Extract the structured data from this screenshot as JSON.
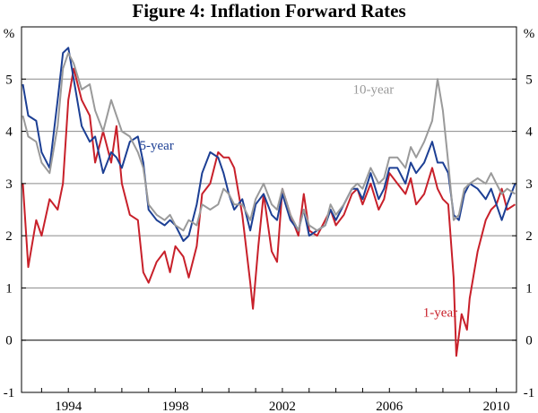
{
  "chart_data": {
    "type": "line",
    "title": "Figure 4: Inflation Forward Rates",
    "ylabel_left": "%",
    "ylabel_right": "%",
    "ylim": [
      -1,
      6
    ],
    "xlim": [
      1992.25,
      2010.75
    ],
    "y_ticks": [
      -1,
      0,
      1,
      2,
      3,
      4,
      5
    ],
    "x_ticks": [
      1994,
      1998,
      2002,
      2006,
      2010
    ],
    "grid": true,
    "series": [
      {
        "name": "1-year",
        "color": "#c8202a",
        "label_at": [
          2007.9,
          0.45
        ],
        "points": [
          [
            1992.3,
            3.0
          ],
          [
            1992.5,
            1.4
          ],
          [
            1992.8,
            2.3
          ],
          [
            1993.0,
            2.0
          ],
          [
            1993.3,
            2.7
          ],
          [
            1993.6,
            2.5
          ],
          [
            1993.8,
            3.0
          ],
          [
            1994.0,
            4.6
          ],
          [
            1994.2,
            5.2
          ],
          [
            1994.5,
            4.6
          ],
          [
            1994.8,
            4.3
          ],
          [
            1995.0,
            3.4
          ],
          [
            1995.3,
            4.0
          ],
          [
            1995.6,
            3.4
          ],
          [
            1995.8,
            4.1
          ],
          [
            1996.0,
            3.0
          ],
          [
            1996.3,
            2.4
          ],
          [
            1996.6,
            2.3
          ],
          [
            1996.8,
            1.3
          ],
          [
            1997.0,
            1.1
          ],
          [
            1997.3,
            1.5
          ],
          [
            1997.6,
            1.7
          ],
          [
            1997.8,
            1.3
          ],
          [
            1998.0,
            1.8
          ],
          [
            1998.3,
            1.6
          ],
          [
            1998.5,
            1.2
          ],
          [
            1998.8,
            1.8
          ],
          [
            1999.0,
            2.8
          ],
          [
            1999.3,
            3.0
          ],
          [
            1999.6,
            3.6
          ],
          [
            1999.8,
            3.5
          ],
          [
            2000.0,
            3.5
          ],
          [
            2000.2,
            3.3
          ],
          [
            2000.5,
            2.4
          ],
          [
            2000.8,
            1.1
          ],
          [
            2000.9,
            0.6
          ],
          [
            2001.1,
            1.8
          ],
          [
            2001.3,
            2.8
          ],
          [
            2001.6,
            1.7
          ],
          [
            2001.8,
            1.5
          ],
          [
            2002.0,
            2.9
          ],
          [
            2002.3,
            2.4
          ],
          [
            2002.6,
            2.0
          ],
          [
            2002.8,
            2.8
          ],
          [
            2003.0,
            2.1
          ],
          [
            2003.3,
            2.0
          ],
          [
            2003.6,
            2.3
          ],
          [
            2003.8,
            2.5
          ],
          [
            2004.0,
            2.2
          ],
          [
            2004.3,
            2.4
          ],
          [
            2004.6,
            2.8
          ],
          [
            2004.8,
            2.9
          ],
          [
            2005.0,
            2.6
          ],
          [
            2005.3,
            3.0
          ],
          [
            2005.6,
            2.5
          ],
          [
            2005.8,
            2.7
          ],
          [
            2006.0,
            3.2
          ],
          [
            2006.3,
            3.0
          ],
          [
            2006.6,
            2.8
          ],
          [
            2006.8,
            3.1
          ],
          [
            2007.0,
            2.6
          ],
          [
            2007.3,
            2.8
          ],
          [
            2007.6,
            3.3
          ],
          [
            2007.8,
            2.9
          ],
          [
            2008.0,
            2.7
          ],
          [
            2008.2,
            2.6
          ],
          [
            2008.4,
            1.2
          ],
          [
            2008.5,
            -0.3
          ],
          [
            2008.7,
            0.5
          ],
          [
            2008.9,
            0.2
          ],
          [
            2009.0,
            0.8
          ],
          [
            2009.3,
            1.7
          ],
          [
            2009.6,
            2.3
          ],
          [
            2009.8,
            2.5
          ],
          [
            2010.0,
            2.6
          ],
          [
            2010.2,
            2.9
          ],
          [
            2010.4,
            2.5
          ],
          [
            2010.7,
            2.6
          ]
        ]
      },
      {
        "name": "5-year",
        "color": "#1c3f94",
        "label_at": [
          1997.3,
          3.65
        ],
        "points": [
          [
            1992.3,
            4.9
          ],
          [
            1992.5,
            4.3
          ],
          [
            1992.8,
            4.2
          ],
          [
            1993.0,
            3.6
          ],
          [
            1993.3,
            3.3
          ],
          [
            1993.6,
            4.6
          ],
          [
            1993.8,
            5.5
          ],
          [
            1994.0,
            5.6
          ],
          [
            1994.2,
            5.0
          ],
          [
            1994.5,
            4.1
          ],
          [
            1994.8,
            3.8
          ],
          [
            1995.0,
            3.9
          ],
          [
            1995.3,
            3.2
          ],
          [
            1995.6,
            3.6
          ],
          [
            1995.8,
            3.5
          ],
          [
            1996.0,
            3.3
          ],
          [
            1996.3,
            3.8
          ],
          [
            1996.6,
            3.9
          ],
          [
            1996.8,
            3.4
          ],
          [
            1997.0,
            2.5
          ],
          [
            1997.3,
            2.3
          ],
          [
            1997.6,
            2.2
          ],
          [
            1997.8,
            2.3
          ],
          [
            1998.0,
            2.2
          ],
          [
            1998.3,
            1.9
          ],
          [
            1998.5,
            2.0
          ],
          [
            1998.8,
            2.6
          ],
          [
            1999.0,
            3.2
          ],
          [
            1999.3,
            3.6
          ],
          [
            1999.6,
            3.5
          ],
          [
            1999.8,
            3.2
          ],
          [
            2000.0,
            2.8
          ],
          [
            2000.2,
            2.5
          ],
          [
            2000.5,
            2.7
          ],
          [
            2000.8,
            2.1
          ],
          [
            2001.0,
            2.6
          ],
          [
            2001.3,
            2.8
          ],
          [
            2001.6,
            2.4
          ],
          [
            2001.8,
            2.3
          ],
          [
            2002.0,
            2.8
          ],
          [
            2002.3,
            2.3
          ],
          [
            2002.6,
            2.1
          ],
          [
            2002.8,
            2.5
          ],
          [
            2003.0,
            2.0
          ],
          [
            2003.3,
            2.1
          ],
          [
            2003.6,
            2.2
          ],
          [
            2003.8,
            2.5
          ],
          [
            2004.0,
            2.3
          ],
          [
            2004.3,
            2.6
          ],
          [
            2004.6,
            2.9
          ],
          [
            2004.8,
            2.9
          ],
          [
            2005.0,
            2.7
          ],
          [
            2005.3,
            3.2
          ],
          [
            2005.6,
            2.7
          ],
          [
            2005.8,
            2.9
          ],
          [
            2006.0,
            3.3
          ],
          [
            2006.3,
            3.3
          ],
          [
            2006.6,
            3.0
          ],
          [
            2006.8,
            3.4
          ],
          [
            2007.0,
            3.2
          ],
          [
            2007.3,
            3.4
          ],
          [
            2007.6,
            3.8
          ],
          [
            2007.8,
            3.4
          ],
          [
            2008.0,
            3.4
          ],
          [
            2008.2,
            3.2
          ],
          [
            2008.4,
            2.4
          ],
          [
            2008.6,
            2.3
          ],
          [
            2008.8,
            2.8
          ],
          [
            2009.0,
            3.0
          ],
          [
            2009.3,
            2.9
          ],
          [
            2009.6,
            2.7
          ],
          [
            2009.8,
            2.9
          ],
          [
            2010.0,
            2.6
          ],
          [
            2010.2,
            2.3
          ],
          [
            2010.4,
            2.6
          ],
          [
            2010.7,
            3.0
          ]
        ]
      },
      {
        "name": "10-year",
        "color": "#9a9a9a",
        "label_at": [
          2005.4,
          4.72
        ],
        "points": [
          [
            1992.3,
            4.3
          ],
          [
            1992.5,
            3.9
          ],
          [
            1992.8,
            3.8
          ],
          [
            1993.0,
            3.4
          ],
          [
            1993.3,
            3.2
          ],
          [
            1993.6,
            4.1
          ],
          [
            1993.8,
            5.2
          ],
          [
            1994.0,
            5.5
          ],
          [
            1994.2,
            5.3
          ],
          [
            1994.5,
            4.8
          ],
          [
            1994.8,
            4.9
          ],
          [
            1995.0,
            4.4
          ],
          [
            1995.3,
            4.0
          ],
          [
            1995.6,
            4.6
          ],
          [
            1995.8,
            4.3
          ],
          [
            1996.0,
            4.0
          ],
          [
            1996.3,
            3.9
          ],
          [
            1996.6,
            3.6
          ],
          [
            1996.8,
            3.3
          ],
          [
            1997.0,
            2.6
          ],
          [
            1997.3,
            2.4
          ],
          [
            1997.6,
            2.3
          ],
          [
            1997.8,
            2.4
          ],
          [
            1998.0,
            2.2
          ],
          [
            1998.3,
            2.1
          ],
          [
            1998.5,
            2.3
          ],
          [
            1998.8,
            2.2
          ],
          [
            1999.0,
            2.6
          ],
          [
            1999.3,
            2.5
          ],
          [
            1999.6,
            2.6
          ],
          [
            1999.8,
            2.9
          ],
          [
            2000.0,
            2.8
          ],
          [
            2000.2,
            2.6
          ],
          [
            2000.5,
            2.6
          ],
          [
            2000.8,
            2.3
          ],
          [
            2001.0,
            2.7
          ],
          [
            2001.3,
            3.0
          ],
          [
            2001.6,
            2.6
          ],
          [
            2001.8,
            2.5
          ],
          [
            2002.0,
            2.9
          ],
          [
            2002.3,
            2.4
          ],
          [
            2002.6,
            2.1
          ],
          [
            2002.8,
            2.5
          ],
          [
            2003.0,
            2.2
          ],
          [
            2003.3,
            2.1
          ],
          [
            2003.6,
            2.2
          ],
          [
            2003.8,
            2.6
          ],
          [
            2004.0,
            2.4
          ],
          [
            2004.3,
            2.6
          ],
          [
            2004.6,
            2.9
          ],
          [
            2004.8,
            3.0
          ],
          [
            2005.0,
            2.9
          ],
          [
            2005.3,
            3.3
          ],
          [
            2005.6,
            3.0
          ],
          [
            2005.8,
            3.1
          ],
          [
            2006.0,
            3.5
          ],
          [
            2006.3,
            3.5
          ],
          [
            2006.6,
            3.3
          ],
          [
            2006.8,
            3.7
          ],
          [
            2007.0,
            3.5
          ],
          [
            2007.3,
            3.8
          ],
          [
            2007.6,
            4.2
          ],
          [
            2007.8,
            5.0
          ],
          [
            2008.0,
            4.4
          ],
          [
            2008.2,
            3.4
          ],
          [
            2008.4,
            2.3
          ],
          [
            2008.6,
            2.4
          ],
          [
            2008.8,
            2.9
          ],
          [
            2009.0,
            3.0
          ],
          [
            2009.3,
            3.1
          ],
          [
            2009.6,
            3.0
          ],
          [
            2009.8,
            3.2
          ],
          [
            2010.0,
            3.0
          ],
          [
            2010.2,
            2.8
          ],
          [
            2010.4,
            2.9
          ],
          [
            2010.7,
            2.8
          ]
        ]
      }
    ]
  }
}
